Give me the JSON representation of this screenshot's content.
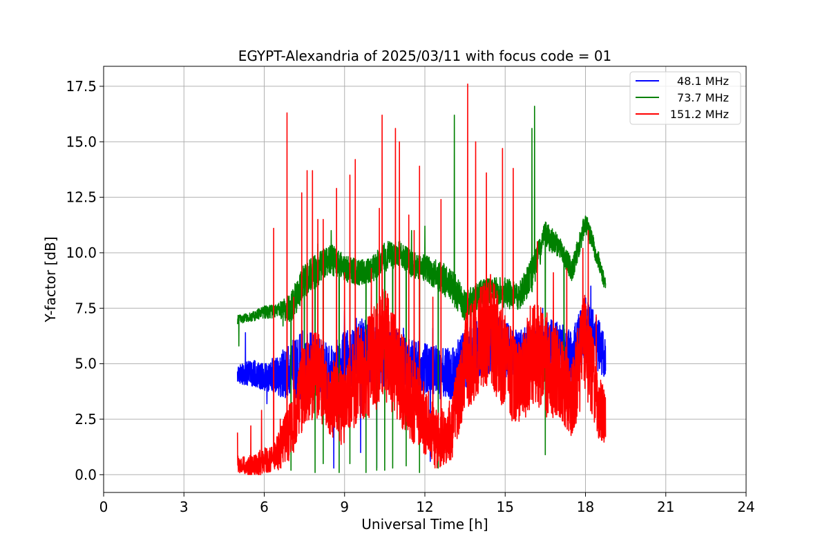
{
  "chart_data": {
    "type": "line",
    "title": "EGYPT-Alexandria of 2025/03/11 with focus code = 01",
    "xlabel": "Universal Time [h]",
    "ylabel": "Y-factor [dB]",
    "xlim": [
      0,
      24
    ],
    "ylim": [
      -0.8,
      18.4
    ],
    "xticks": [
      0,
      3,
      6,
      9,
      12,
      15,
      18,
      21,
      24
    ],
    "xtick_labels": [
      "0",
      "3",
      "6",
      "9",
      "12",
      "15",
      "18",
      "21",
      "24"
    ],
    "yticks": [
      0,
      2.5,
      5,
      7.5,
      10,
      12.5,
      15,
      17.5
    ],
    "ytick_labels": [
      "0.0",
      "2.5",
      "5.0",
      "7.5",
      "10.0",
      "12.5",
      "15.0",
      "17.5"
    ],
    "grid": true,
    "legend_position": "top-right",
    "x_range": [
      5.0,
      18.75
    ],
    "series": [
      {
        "name": "48.1 MHz",
        "color": "#0000ff",
        "x": [
          5.0,
          5.5,
          6.0,
          6.5,
          7.0,
          7.5,
          8.0,
          8.5,
          9.0,
          9.5,
          10.0,
          10.5,
          11.0,
          11.5,
          12.0,
          12.5,
          13.0,
          13.5,
          14.0,
          14.5,
          15.0,
          15.5,
          16.0,
          16.5,
          17.0,
          17.5,
          18.0,
          18.5,
          18.75
        ],
        "y": [
          4.5,
          4.6,
          4.4,
          4.5,
          4.6,
          5.0,
          4.8,
          4.6,
          5.2,
          5.6,
          5.4,
          5.3,
          5.1,
          4.9,
          4.8,
          4.6,
          4.5,
          5.2,
          5.8,
          6.0,
          5.6,
          5.3,
          5.6,
          5.8,
          5.7,
          5.2,
          6.6,
          5.8,
          5.2
        ],
        "noise": [
          0.4,
          0.6,
          0.6,
          0.9,
          1.4,
          1.6,
          1.4,
          1.2,
          1.4,
          1.6,
          1.4,
          1.4,
          1.4,
          1.2,
          1.2,
          1.2,
          1.2,
          1.3,
          1.4,
          1.4,
          1.3,
          1.2,
          1.3,
          1.3,
          1.2,
          1.3,
          1.4,
          1.2,
          1.0
        ],
        "spikes": [
          [
            5.3,
            6.4
          ],
          [
            6.1,
            3.2
          ],
          [
            7.8,
            8.3
          ],
          [
            8.6,
            0.3
          ],
          [
            9.0,
            7.4
          ],
          [
            9.6,
            1.0
          ],
          [
            10.2,
            0.3
          ],
          [
            11.2,
            6.6
          ],
          [
            11.6,
            1.6
          ],
          [
            12.2,
            0.6
          ],
          [
            12.3,
            6.6
          ],
          [
            14.9,
            7.8
          ],
          [
            16.4,
            7.5
          ],
          [
            18.2,
            8.5
          ],
          [
            18.4,
            7.1
          ]
        ]
      },
      {
        "name": "73.7 MHz",
        "color": "#008000",
        "x": [
          5.0,
          5.5,
          6.0,
          6.5,
          7.0,
          7.5,
          8.0,
          8.5,
          9.0,
          9.5,
          10.0,
          10.5,
          11.0,
          11.5,
          12.0,
          12.5,
          13.0,
          13.5,
          14.0,
          14.5,
          15.0,
          15.5,
          16.0,
          16.5,
          17.0,
          17.5,
          18.0,
          18.5,
          18.75
        ],
        "y": [
          7.0,
          7.1,
          7.3,
          7.4,
          7.5,
          8.8,
          9.2,
          9.7,
          9.3,
          9.1,
          9.2,
          9.8,
          10.0,
          9.5,
          9.3,
          9.0,
          8.5,
          7.6,
          8.1,
          8.4,
          8.2,
          8.0,
          9.0,
          10.8,
          10.3,
          9.2,
          11.4,
          9.6,
          8.5
        ],
        "noise": [
          0.2,
          0.2,
          0.3,
          0.3,
          0.7,
          0.8,
          0.8,
          0.7,
          0.6,
          0.6,
          0.6,
          0.7,
          0.6,
          0.6,
          0.6,
          0.7,
          0.8,
          0.7,
          0.6,
          0.6,
          0.7,
          0.6,
          0.8,
          0.6,
          0.5,
          0.5,
          0.5,
          0.4,
          0.3
        ],
        "spikes": [
          [
            5.05,
            5.8
          ],
          [
            6.7,
            6.7
          ],
          [
            7.0,
            0.2
          ],
          [
            7.5,
            4.4
          ],
          [
            7.9,
            0.1
          ],
          [
            8.0,
            10.4
          ],
          [
            8.2,
            0.5
          ],
          [
            8.5,
            11.0
          ],
          [
            8.8,
            0.1
          ],
          [
            9.2,
            0.5
          ],
          [
            9.8,
            0.1
          ],
          [
            10.2,
            0.2
          ],
          [
            10.5,
            0.2
          ],
          [
            10.8,
            0.3
          ],
          [
            11.3,
            0.4
          ],
          [
            11.5,
            11.0
          ],
          [
            11.8,
            0.1
          ],
          [
            12.0,
            11.2
          ],
          [
            12.5,
            0.3
          ],
          [
            13.1,
            16.2
          ],
          [
            16.1,
            16.6
          ],
          [
            16.0,
            15.6
          ],
          [
            16.5,
            0.9
          ],
          [
            17.2,
            3.5
          ]
        ]
      },
      {
        "name": "151.2 MHz",
        "color": "#ff0000",
        "x": [
          5.0,
          5.5,
          6.0,
          6.5,
          7.0,
          7.5,
          8.0,
          8.5,
          9.0,
          9.5,
          10.0,
          10.5,
          11.0,
          11.5,
          12.0,
          12.5,
          13.0,
          13.5,
          14.0,
          14.5,
          15.0,
          15.5,
          16.0,
          16.5,
          17.0,
          17.5,
          18.0,
          18.5,
          18.75
        ],
        "y": [
          0.5,
          0.4,
          0.6,
          1.0,
          2.0,
          4.0,
          4.5,
          3.5,
          3.0,
          4.5,
          5.0,
          6.0,
          4.5,
          3.5,
          2.5,
          1.5,
          2.0,
          5.0,
          6.0,
          6.5,
          5.0,
          4.0,
          5.5,
          5.0,
          4.5,
          3.5,
          6.0,
          3.0,
          2.5
        ],
        "noise": [
          0.4,
          0.5,
          0.6,
          0.8,
          1.4,
          2.0,
          2.0,
          1.8,
          1.8,
          2.2,
          2.4,
          2.6,
          2.2,
          2.0,
          1.6,
          1.4,
          1.4,
          2.2,
          2.4,
          2.6,
          2.2,
          2.0,
          2.4,
          2.4,
          2.0,
          1.8,
          2.4,
          1.6,
          1.2
        ],
        "spikes": [
          [
            5.0,
            1.9
          ],
          [
            5.5,
            2.2
          ],
          [
            5.9,
            2.9
          ],
          [
            6.35,
            11.1
          ],
          [
            6.6,
            2.5
          ],
          [
            6.85,
            16.3
          ],
          [
            7.1,
            8.0
          ],
          [
            7.4,
            12.7
          ],
          [
            7.6,
            13.7
          ],
          [
            7.8,
            13.7
          ],
          [
            8.0,
            11.5
          ],
          [
            8.2,
            11.5
          ],
          [
            8.7,
            12.9
          ],
          [
            9.0,
            9.1
          ],
          [
            9.2,
            13.5
          ],
          [
            9.4,
            14.2
          ],
          [
            10.0,
            9.3
          ],
          [
            10.3,
            12.0
          ],
          [
            10.4,
            16.2
          ],
          [
            10.9,
            15.6
          ],
          [
            11.05,
            15.0
          ],
          [
            11.4,
            11.7
          ],
          [
            11.6,
            11.0
          ],
          [
            11.8,
            13.9
          ],
          [
            12.3,
            8.0
          ],
          [
            12.6,
            12.4
          ],
          [
            13.6,
            17.6
          ],
          [
            13.9,
            15.0
          ],
          [
            14.3,
            13.6
          ],
          [
            14.9,
            14.7
          ],
          [
            15.3,
            13.8
          ],
          [
            16.2,
            10.5
          ],
          [
            16.8,
            9.1
          ],
          [
            17.3,
            9.3
          ],
          [
            17.9,
            10.2
          ],
          [
            18.1,
            11.0
          ],
          [
            18.4,
            7.2
          ]
        ]
      }
    ]
  }
}
